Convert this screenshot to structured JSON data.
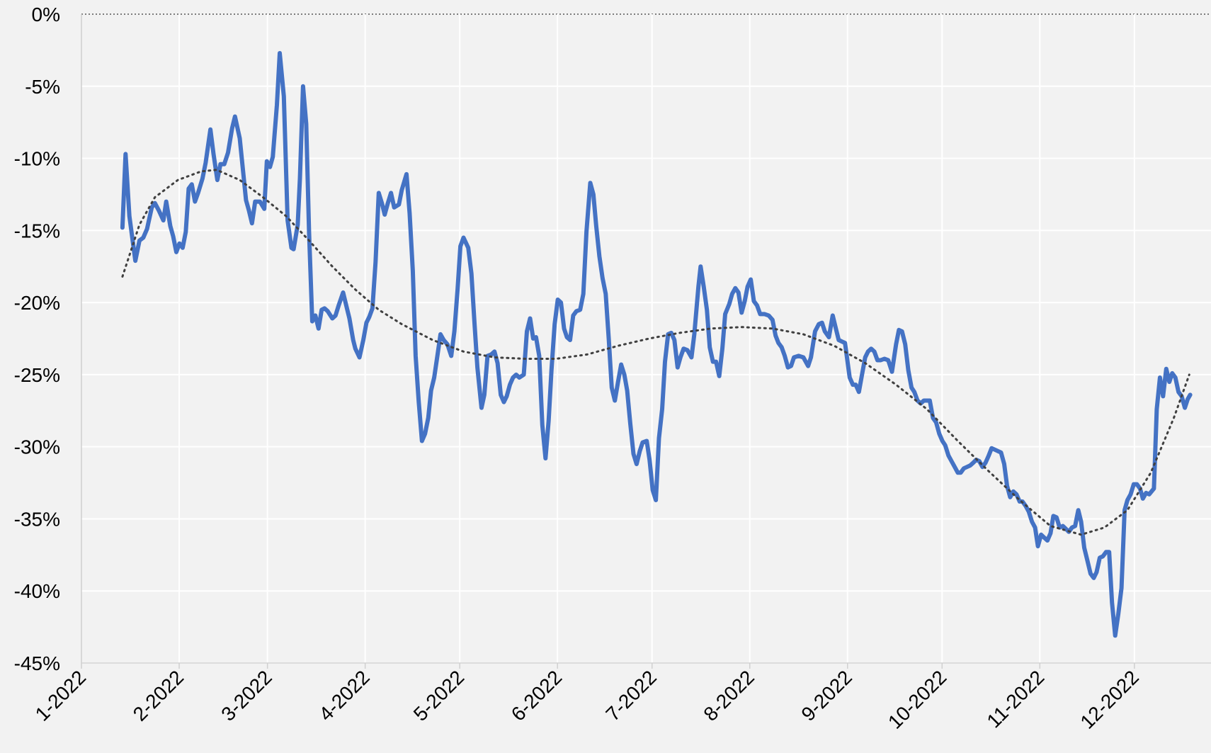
{
  "chart_data": {
    "type": "line",
    "xlim": [
      1,
      359.3
    ],
    "xticks": [
      {
        "value": 1,
        "label": "1-2022"
      },
      {
        "value": 32,
        "label": "2-2022"
      },
      {
        "value": 60,
        "label": "3-2022"
      },
      {
        "value": 91,
        "label": "4-2022"
      },
      {
        "value": 121,
        "label": "5-2022"
      },
      {
        "value": 152,
        "label": "6-2022"
      },
      {
        "value": 182,
        "label": "7-2022"
      },
      {
        "value": 213,
        "label": "8-2022"
      },
      {
        "value": 244,
        "label": "9-2022"
      },
      {
        "value": 274,
        "label": "10-2022"
      },
      {
        "value": 305,
        "label": "11-2022"
      },
      {
        "value": 335,
        "label": "12-2022"
      }
    ],
    "ylim": [
      -45,
      0
    ],
    "yticks": [
      {
        "value": 0,
        "label": "0%"
      },
      {
        "value": -5,
        "label": "-5%"
      },
      {
        "value": -10,
        "label": "-10%"
      },
      {
        "value": -15,
        "label": "-15%"
      },
      {
        "value": -20,
        "label": "-20%"
      },
      {
        "value": -25,
        "label": "-25%"
      },
      {
        "value": -30,
        "label": "-30%"
      },
      {
        "value": -35,
        "label": "-35%"
      },
      {
        "value": -40,
        "label": "-40%"
      },
      {
        "value": -45,
        "label": "-45%"
      }
    ],
    "grid": true,
    "series": [
      {
        "color": "#4472c4",
        "style": "solid",
        "x": [
          14.0,
          15.0,
          16.2,
          18.1,
          19.4,
          20.6,
          21.8,
          23.3,
          24.3,
          25.5,
          27.0,
          27.9,
          29.2,
          30.1,
          31.1,
          32.1,
          33.1,
          34.1,
          35.0,
          36.0,
          37.0,
          38.0,
          39.4,
          40.4,
          41.9,
          42.9,
          44.1,
          45.1,
          46.3,
          47.5,
          48.8,
          49.7,
          51.2,
          53.2,
          54.1,
          55.1,
          56.1,
          57.6,
          59.0,
          59.8,
          60.8,
          61.7,
          63.0,
          63.9,
          65.2,
          66.4,
          67.6,
          68.3,
          69.6,
          70.3,
          71.3,
          72.3,
          73.2,
          74.2,
          75.2,
          76.2,
          77.2,
          78.1,
          79.1,
          80.6,
          81.6,
          82.6,
          84.0,
          85.0,
          86.0,
          87.2,
          87.9,
          89.2,
          90.4,
          91.4,
          92.3,
          93.3,
          94.3,
          95.3,
          96.3,
          97.2,
          98.2,
          99.2,
          100.2,
          101.7,
          102.6,
          104.1,
          105.1,
          106.1,
          107.0,
          108.0,
          109.0,
          110.0,
          111.0,
          111.9,
          112.9,
          113.9,
          114.9,
          115.9,
          117.1,
          118.3,
          119.3,
          120.3,
          121.2,
          122.2,
          123.7,
          124.7,
          125.7,
          126.6,
          127.9,
          128.8,
          129.8,
          131.0,
          132.0,
          133.0,
          134.0,
          135.0,
          135.9,
          136.9,
          137.9,
          138.9,
          139.9,
          141.3,
          142.3,
          143.3,
          144.3,
          145.2,
          146.2,
          147.2,
          148.2,
          149.2,
          150.1,
          151.1,
          152.1,
          153.1,
          154.1,
          155.0,
          156.0,
          157.0,
          158.0,
          159.2,
          160.2,
          161.2,
          162.4,
          163.4,
          164.3,
          165.3,
          166.3,
          167.3,
          168.3,
          169.2,
          170.2,
          171.2,
          172.2,
          173.2,
          174.1,
          175.1,
          176.1,
          177.1,
          178.1,
          179.0,
          180.3,
          181.2,
          182.2,
          183.2,
          184.2,
          185.2,
          186.1,
          187.1,
          188.1,
          189.1,
          190.1,
          191.0,
          192.0,
          193.2,
          194.5,
          195.4,
          196.7,
          197.4,
          198.4,
          199.4,
          200.3,
          201.3,
          202.3,
          203.3,
          204.3,
          205.2,
          206.5,
          207.4,
          208.4,
          209.4,
          210.4,
          211.4,
          212.3,
          213.3,
          214.3,
          215.3,
          216.3,
          217.7,
          219.0,
          220.2,
          221.2,
          222.1,
          223.1,
          224.1,
          225.1,
          226.1,
          227.0,
          228.5,
          230.0,
          231.5,
          232.4,
          233.7,
          234.9,
          235.9,
          236.8,
          238.1,
          239.3,
          240.3,
          241.2,
          242.2,
          243.2,
          244.7,
          245.7,
          246.6,
          247.6,
          248.6,
          249.6,
          250.5,
          251.5,
          252.5,
          253.5,
          254.5,
          255.7,
          256.9,
          258.1,
          259.4,
          260.3,
          261.3,
          262.3,
          263.3,
          264.3,
          265.2,
          266.2,
          267.2,
          268.2,
          269.2,
          270.1,
          271.1,
          272.1,
          273.1,
          274.1,
          275.0,
          276.0,
          277.0,
          278.0,
          279.0,
          279.9,
          280.9,
          281.9,
          282.9,
          283.9,
          284.8,
          285.8,
          286.8,
          287.8,
          288.8,
          289.7,
          290.7,
          291.7,
          292.7,
          293.7,
          294.6,
          295.6,
          296.6,
          297.6,
          298.6,
          299.5,
          300.5,
          301.5,
          302.5,
          303.5,
          304.4,
          305.4,
          306.4,
          307.4,
          308.4,
          309.3,
          310.3,
          311.3,
          312.3,
          313.3,
          314.2,
          315.2,
          316.2,
          317.2,
          318.1,
          319.1,
          320.1,
          321.1,
          322.1,
          323.0,
          324.0,
          325.0,
          326.0,
          327.0,
          327.9,
          328.9,
          329.9,
          330.9,
          331.9,
          332.8,
          333.8,
          334.8,
          335.8,
          336.8,
          337.7,
          338.7,
          339.7,
          341.2,
          342.1,
          343.1,
          344.1,
          345.1,
          346.1,
          347.0,
          348.0,
          349.0,
          350.0,
          351.0,
          351.9,
          352.7
        ],
        "values": [
          -14.8,
          -9.7,
          -14.0,
          -17.1,
          -15.7,
          -15.5,
          -14.9,
          -13.4,
          -13.1,
          -13.6,
          -14.3,
          -13.0,
          -14.7,
          -15.4,
          -16.5,
          -15.9,
          -16.2,
          -15.1,
          -12.1,
          -11.8,
          -13.0,
          -12.4,
          -11.4,
          -10.3,
          -8.0,
          -9.7,
          -11.5,
          -10.4,
          -10.4,
          -9.6,
          -7.9,
          -7.1,
          -8.6,
          -12.9,
          -13.6,
          -14.5,
          -13.0,
          -13.0,
          -13.5,
          -10.2,
          -10.6,
          -9.9,
          -6.3,
          -2.7,
          -5.7,
          -14.3,
          -16.2,
          -16.3,
          -14.6,
          -11.4,
          -5.0,
          -7.6,
          -15.1,
          -21.3,
          -20.9,
          -21.8,
          -20.5,
          -20.4,
          -20.6,
          -21.1,
          -20.9,
          -20.2,
          -19.3,
          -20.2,
          -21.1,
          -22.6,
          -23.2,
          -23.8,
          -22.6,
          -21.4,
          -21.0,
          -20.4,
          -17.2,
          -12.4,
          -13.1,
          -13.9,
          -13.1,
          -12.4,
          -13.4,
          -13.2,
          -12.2,
          -11.1,
          -13.8,
          -17.8,
          -23.7,
          -26.9,
          -29.6,
          -29.1,
          -28.0,
          -26.1,
          -25.2,
          -23.7,
          -22.2,
          -22.6,
          -22.9,
          -23.7,
          -22.0,
          -19.1,
          -16.1,
          -15.5,
          -16.2,
          -18.0,
          -21.5,
          -24.5,
          -27.3,
          -26.4,
          -23.7,
          -23.6,
          -23.4,
          -24.2,
          -26.4,
          -26.9,
          -26.5,
          -25.7,
          -25.2,
          -25.0,
          -25.2,
          -25.0,
          -22.0,
          -21.1,
          -22.5,
          -22.4,
          -23.7,
          -28.5,
          -30.8,
          -28.2,
          -24.7,
          -21.5,
          -19.8,
          -20.0,
          -21.8,
          -22.4,
          -22.6,
          -20.9,
          -20.6,
          -20.5,
          -19.4,
          -15.1,
          -11.7,
          -12.5,
          -14.7,
          -16.8,
          -18.3,
          -19.4,
          -22.6,
          -25.9,
          -26.8,
          -25.5,
          -24.3,
          -25.0,
          -26.1,
          -28.4,
          -30.5,
          -31.2,
          -30.3,
          -29.7,
          -29.6,
          -30.9,
          -33.0,
          -33.7,
          -29.4,
          -27.4,
          -24.1,
          -22.2,
          -22.1,
          -22.6,
          -24.5,
          -23.8,
          -23.2,
          -23.3,
          -23.8,
          -22.2,
          -18.9,
          -17.5,
          -18.9,
          -20.5,
          -23.1,
          -24.1,
          -24.1,
          -25.1,
          -23.2,
          -20.8,
          -20.1,
          -19.4,
          -19.0,
          -19.3,
          -20.7,
          -19.9,
          -18.9,
          -18.4,
          -19.9,
          -20.2,
          -20.8,
          -20.8,
          -20.9,
          -21.2,
          -22.3,
          -22.8,
          -23.1,
          -23.7,
          -24.5,
          -24.4,
          -23.8,
          -23.7,
          -23.8,
          -24.4,
          -23.8,
          -22.0,
          -21.5,
          -21.4,
          -22.0,
          -22.4,
          -20.9,
          -21.8,
          -22.6,
          -22.7,
          -22.8,
          -25.2,
          -25.7,
          -25.7,
          -26.2,
          -25.0,
          -23.8,
          -23.4,
          -23.2,
          -23.4,
          -24.0,
          -24.0,
          -23.9,
          -24.0,
          -24.8,
          -22.9,
          -21.9,
          -22.0,
          -22.9,
          -24.7,
          -25.9,
          -26.2,
          -26.8,
          -27.0,
          -26.8,
          -26.8,
          -26.8,
          -28.0,
          -28.3,
          -29.1,
          -29.6,
          -29.9,
          -30.6,
          -31.0,
          -31.4,
          -31.8,
          -31.8,
          -31.5,
          -31.4,
          -31.3,
          -31.1,
          -30.9,
          -31.0,
          -31.4,
          -31.1,
          -30.6,
          -30.1,
          -30.2,
          -30.3,
          -30.4,
          -31.2,
          -32.7,
          -33.5,
          -33.1,
          -33.3,
          -33.8,
          -33.8,
          -34.1,
          -34.5,
          -35.2,
          -35.6,
          -36.9,
          -36.1,
          -36.3,
          -36.5,
          -36.0,
          -34.8,
          -34.9,
          -35.6,
          -35.5,
          -35.7,
          -35.9,
          -35.6,
          -35.5,
          -34.4,
          -35.2,
          -37.0,
          -37.9,
          -38.8,
          -39.1,
          -38.7,
          -37.7,
          -37.6,
          -37.3,
          -37.3,
          -40.8,
          -43.1,
          -41.6,
          -39.8,
          -34.4,
          -33.7,
          -33.3,
          -32.6,
          -32.6,
          -32.9,
          -33.6,
          -33.2,
          -33.3,
          -32.9,
          -27.4,
          -25.2,
          -26.5,
          -24.6,
          -25.5,
          -24.9,
          -25.2,
          -26.2,
          -26.5,
          -27.3,
          -26.7,
          -26.4
        ]
      },
      {
        "color": "#404040",
        "style": "dotted",
        "x": [
          14.0,
          19.4,
          24.3,
          31.6,
          39.0,
          43.9,
          51.2,
          58.6,
          65.9,
          73.2,
          80.6,
          87.9,
          95.3,
          102.6,
          112.4,
          122.2,
          132.0,
          141.8,
          151.6,
          161.4,
          171.2,
          181.0,
          190.8,
          200.6,
          210.4,
          220.2,
          230.0,
          239.8,
          249.6,
          259.4,
          269.2,
          279.0,
          288.8,
          298.6,
          308.4,
          318.1,
          325.5,
          332.8,
          340.2,
          347.5,
          352.4
        ],
        "values": [
          -18.2,
          -14.6,
          -12.7,
          -11.5,
          -10.9,
          -10.8,
          -11.5,
          -12.7,
          -14.0,
          -15.7,
          -17.5,
          -19.1,
          -20.5,
          -21.5,
          -22.6,
          -23.4,
          -23.8,
          -23.9,
          -23.9,
          -23.6,
          -23.0,
          -22.5,
          -22.1,
          -21.8,
          -21.7,
          -21.8,
          -22.2,
          -23.0,
          -24.2,
          -25.7,
          -27.4,
          -29.6,
          -31.7,
          -33.7,
          -35.5,
          -36.1,
          -35.6,
          -34.4,
          -31.8,
          -28.0,
          -25.0
        ]
      }
    ]
  }
}
